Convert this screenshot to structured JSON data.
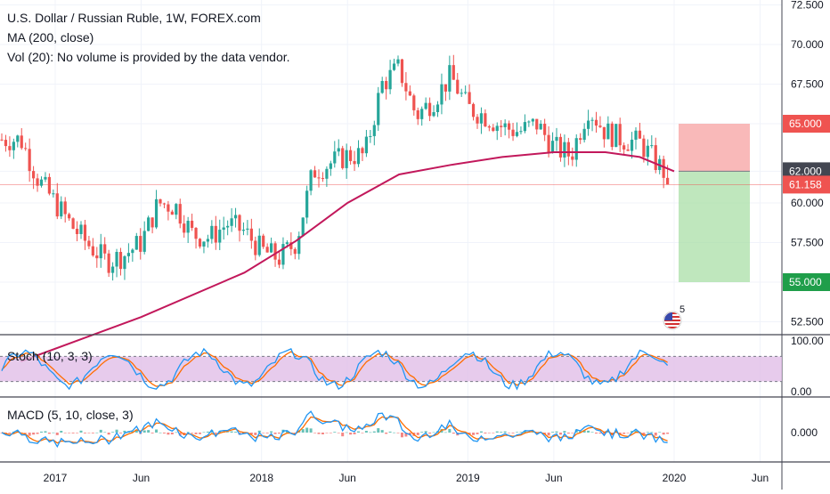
{
  "header": {
    "title": "U.S. Dollar / Russian Ruble, 1W, FOREX.com",
    "ma_label": "MA (200, close)",
    "vol_label": "Vol (20): No volume is provided by the data vendor."
  },
  "indicators": {
    "stoch_label": "Stoch (10, 3, 3)",
    "macd_label": "MACD (5, 10, close, 3)"
  },
  "price_tags": {
    "stop": "65.000",
    "entry": "62.000",
    "last": "61.158",
    "target": "55.000"
  },
  "badge": {
    "count": "5",
    "icon": "us-flag-icon"
  },
  "colors": {
    "up": "#26a69a",
    "down": "#ef5350",
    "ma": "#c2185b",
    "stoch_k": "#2196f3",
    "stoch_d": "#ff6d00",
    "stop_zone": "#f7a1a1",
    "target_zone": "#a9dfa7",
    "stoch_band": "#e1bee7"
  },
  "chart_data": {
    "type": "candlestick",
    "symbol": "U.S. Dollar / Russian Ruble",
    "timeframe": "1W",
    "y_ticks": [
      "72.500",
      "70.000",
      "67.500",
      "65.000",
      "62.000",
      "60.000",
      "57.500",
      "55.000",
      "52.500"
    ],
    "ylim": [
      51.5,
      72.5
    ],
    "x_ticks": [
      "2017",
      "Jun",
      "2018",
      "Jun",
      "2019",
      "Jun",
      "2020",
      "Jun"
    ],
    "close_path": [
      [
        "2016-11",
        64.0
      ],
      [
        "2016-12",
        61.5
      ],
      [
        "2017-01",
        60.0
      ],
      [
        "2017-02",
        58.5
      ],
      [
        "2017-03",
        57.3
      ],
      [
        "2017-04",
        56.3
      ],
      [
        "2017-05",
        56.7
      ],
      [
        "2017-06",
        57.5
      ],
      [
        "2017-07",
        60.0
      ],
      [
        "2017-08",
        59.8
      ],
      [
        "2017-09",
        58.0
      ],
      [
        "2017-10",
        57.8
      ],
      [
        "2017-11",
        58.7
      ],
      [
        "2017-12",
        58.2
      ],
      [
        "2018-01",
        57.0
      ],
      [
        "2018-02",
        56.5
      ],
      [
        "2018-03",
        57.5
      ],
      [
        "2018-04",
        62.0
      ],
      [
        "2018-05",
        62.5
      ],
      [
        "2018-06",
        63.0
      ],
      [
        "2018-07",
        63.0
      ],
      [
        "2018-08",
        67.5
      ],
      [
        "2018-09",
        68.5
      ],
      [
        "2018-10",
        65.5
      ],
      [
        "2018-11",
        66.5
      ],
      [
        "2018-12",
        68.0
      ],
      [
        "2019-01",
        66.0
      ],
      [
        "2019-02",
        65.5
      ],
      [
        "2019-03",
        64.8
      ],
      [
        "2019-04",
        64.5
      ],
      [
        "2019-05",
        65.0
      ],
      [
        "2019-06",
        63.5
      ],
      [
        "2019-07",
        63.0
      ],
      [
        "2019-08",
        66.0
      ],
      [
        "2019-09",
        64.5
      ],
      [
        "2019-10",
        64.0
      ],
      [
        "2019-11",
        63.8
      ],
      [
        "2019-12",
        62.5
      ],
      [
        "2020-01",
        61.158
      ]
    ],
    "ma200": [
      [
        "2016-11",
        50.0
      ],
      [
        "2017-06",
        52.8
      ],
      [
        "2017-12",
        55.6
      ],
      [
        "2018-03",
        57.6
      ],
      [
        "2018-06",
        60.0
      ],
      [
        "2018-09",
        61.8
      ],
      [
        "2018-12",
        62.4
      ],
      [
        "2019-03",
        62.9
      ],
      [
        "2019-06",
        63.2
      ],
      [
        "2019-09",
        63.2
      ],
      [
        "2019-11",
        62.9
      ],
      [
        "2020-01",
        62.0
      ]
    ],
    "position": {
      "entry": 62.0,
      "stop": 65.0,
      "target": 55.0,
      "last": 61.158
    },
    "stoch": {
      "label": "Stoch (10, 3, 3)",
      "y_ticks": [
        "100.00",
        "0.00"
      ],
      "bands": [
        80,
        20
      ]
    },
    "macd": {
      "label": "MACD (5, 10, close, 3)",
      "y_ticks": [
        "0.000"
      ]
    }
  }
}
